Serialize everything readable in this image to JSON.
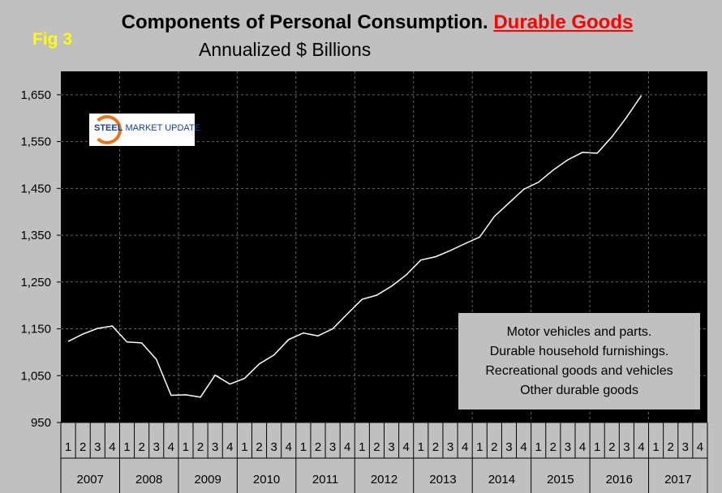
{
  "figure_label": "Fig 3",
  "title_main": "Components of Personal Consumption.",
  "title_highlight": "Durable Goods",
  "subtitle": "Annualized $ Billions",
  "logo": {
    "word1": "STEEL",
    "word2": "MARKET UPDATE"
  },
  "legend_lines": [
    "Motor vehicles and parts.",
    "Durable household furnishings.",
    "Recreational goods and vehicles",
    "Other durable goods"
  ],
  "colors": {
    "background": "#c0c0c0",
    "plot_bg": "#000000",
    "line": "#ffffff",
    "grid": "#666666",
    "fig_label": "#ffff00",
    "highlight": "#ff0000"
  },
  "chart_data": {
    "type": "line",
    "title": "Components of Personal Consumption. Durable Goods",
    "subtitle": "Annualized $ Billions",
    "ylim": [
      950,
      1700
    ],
    "yticks": [
      950,
      1050,
      1150,
      1250,
      1350,
      1450,
      1550,
      1650
    ],
    "ytick_labels": [
      "950",
      "1,050",
      "1,150",
      "1,250",
      "1,350",
      "1,450",
      "1,550",
      "1,650"
    ],
    "grid": "horizontal-dashed",
    "quarters": [
      "1",
      "2",
      "3",
      "4"
    ],
    "years": [
      "2007",
      "2008",
      "2009",
      "2010",
      "2011",
      "2012",
      "2013",
      "2014",
      "2015",
      "2016",
      "2017"
    ],
    "series": [
      {
        "name": "Durable Goods",
        "values": [
          1123,
          1139,
          1151,
          1156,
          1122,
          1120,
          1085,
          1008,
          1009,
          1004,
          1051,
          1032,
          1044,
          1075,
          1094,
          1127,
          1141,
          1135,
          1150,
          1182,
          1213,
          1222,
          1241,
          1265,
          1297,
          1304,
          1317,
          1332,
          1346,
          1390,
          1419,
          1448,
          1463,
          1489,
          1511,
          1527,
          1525,
          1560,
          1602,
          1648
        ]
      }
    ]
  }
}
